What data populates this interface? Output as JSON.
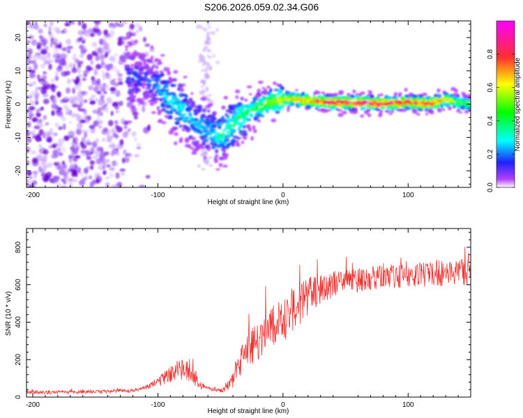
{
  "title": "S206.2026.059.02.34.G06",
  "chart_data": [
    {
      "type": "heatmap",
      "name": "spectrogram",
      "xlabel": "Height of straight line (km)",
      "ylabel": "Frequency (Hz)",
      "xlim": [
        -205,
        150
      ],
      "ylim": [
        -25,
        25
      ],
      "xticks": [
        -200,
        -100,
        0,
        100
      ],
      "yticks": [
        -20,
        -10,
        0,
        10,
        20
      ],
      "colorbar": {
        "label": "Normalized spectral amplitude",
        "range": [
          0.0,
          1.0
        ],
        "ticks": [
          "0.0",
          "0.2",
          "0.4",
          "0.6",
          "0.8"
        ]
      },
      "ridge": {
        "x": [
          -110,
          -100,
          -90,
          -80,
          -70,
          -60,
          -50,
          -45,
          -40,
          -30,
          -20,
          -10,
          0,
          10,
          20,
          40,
          60,
          80,
          100,
          120,
          130,
          140,
          150
        ],
        "freq": [
          8,
          5,
          1,
          -2,
          -6,
          -8,
          -10,
          -8,
          -6,
          -3,
          -1,
          0.5,
          1.5,
          1.5,
          1,
          0.5,
          0.5,
          0.2,
          0.5,
          0.2,
          1.5,
          0.5,
          0
        ],
        "amplitude": [
          0.15,
          0.2,
          0.3,
          0.3,
          0.25,
          0.25,
          0.3,
          0.35,
          0.35,
          0.4,
          0.45,
          0.55,
          0.65,
          0.7,
          0.75,
          0.9,
          0.92,
          0.9,
          0.85,
          0.85,
          0.7,
          0.55,
          0.45
        ]
      }
    },
    {
      "type": "line",
      "name": "snr",
      "color": "#ee3333",
      "xlabel": "Height of straight line (km)",
      "ylabel": "SNR (10 * v/v)",
      "xlim": [
        -205,
        150
      ],
      "ylim": [
        0,
        900
      ],
      "xticks": [
        -200,
        -100,
        0,
        100
      ],
      "yticks": [
        0,
        200,
        400,
        600,
        800
      ],
      "envelope": {
        "x": [
          -205,
          -150,
          -120,
          -110,
          -100,
          -90,
          -85,
          -80,
          -75,
          -70,
          -65,
          -60,
          -55,
          -50,
          -45,
          -40,
          -35,
          -30,
          -20,
          -10,
          0,
          10,
          20,
          30,
          40,
          60,
          80,
          100,
          120,
          140,
          150
        ],
        "y": [
          25,
          28,
          35,
          50,
          80,
          120,
          140,
          150,
          130,
          95,
          60,
          45,
          38,
          35,
          50,
          100,
          170,
          230,
          300,
          360,
          420,
          480,
          540,
          580,
          600,
          625,
          640,
          650,
          660,
          670,
          670
        ],
        "noise": [
          10,
          10,
          10,
          12,
          25,
          45,
          55,
          60,
          50,
          35,
          20,
          12,
          10,
          10,
          20,
          55,
          80,
          90,
          110,
          120,
          130,
          120,
          100,
          80,
          70,
          65,
          65,
          65,
          70,
          75,
          75
        ]
      }
    }
  ]
}
